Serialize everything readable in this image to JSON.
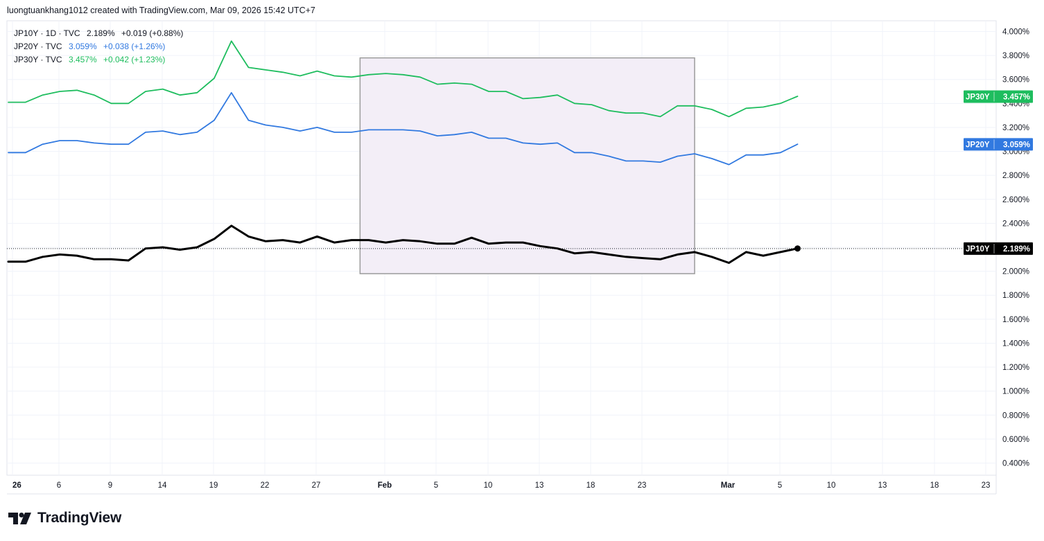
{
  "header": {
    "text": "luongtuankhang1012 created with TradingView.com, Mar 09, 2026 15:42 UTC+7"
  },
  "legend": [
    {
      "symbol": "JP10Y · 1D · TVC",
      "value": "2.189%",
      "change": "+0.019 (+0.88%)",
      "color": "#131722"
    },
    {
      "symbol": "JP20Y · TVC",
      "value": "3.059%",
      "change": "+0.038 (+1.26%)",
      "color": "#3179e0"
    },
    {
      "symbol": "JP30Y · TVC",
      "value": "3.457%",
      "change": "+0.042 (+1.23%)",
      "color": "#1ebd5e"
    }
  ],
  "brand": {
    "name": "TradingView"
  },
  "chart_data": {
    "type": "line",
    "y_ticks": [
      "4.000%",
      "3.800%",
      "3.600%",
      "3.400%",
      "3.200%",
      "3.000%",
      "2.800%",
      "2.600%",
      "2.400%",
      "2.200%",
      "2.000%",
      "1.800%",
      "1.600%",
      "1.400%",
      "1.200%",
      "1.000%",
      "0.800%",
      "0.600%",
      "0.400%"
    ],
    "x_ticks": [
      "26",
      "6",
      "9",
      "14",
      "19",
      "22",
      "27",
      "Feb",
      "5",
      "10",
      "13",
      "18",
      "23",
      "Mar",
      "5",
      "10",
      "13",
      "18",
      "23"
    ],
    "ylim": [
      0.4,
      4.0
    ],
    "grid": true,
    "x_index_range": [
      0,
      57
    ],
    "series": [
      {
        "name": "JP30Y",
        "color": "#1ebd5e",
        "last_label": "3.457%",
        "x": [
          0,
          1,
          2,
          3,
          4,
          5,
          6,
          7,
          8,
          9,
          10,
          11,
          12,
          13,
          14,
          15,
          16,
          17,
          18,
          19,
          20,
          21,
          22,
          23,
          24,
          25,
          26,
          27,
          28,
          29,
          30,
          31,
          32,
          33,
          34,
          35,
          36,
          37,
          38,
          39,
          40,
          41,
          42,
          43,
          44,
          45,
          46
        ],
        "values": [
          3.41,
          3.41,
          3.47,
          3.5,
          3.51,
          3.47,
          3.4,
          3.4,
          3.5,
          3.52,
          3.47,
          3.49,
          3.61,
          3.92,
          3.7,
          3.68,
          3.66,
          3.63,
          3.67,
          3.63,
          3.62,
          3.64,
          3.65,
          3.64,
          3.62,
          3.56,
          3.57,
          3.56,
          3.5,
          3.5,
          3.44,
          3.45,
          3.47,
          3.4,
          3.39,
          3.34,
          3.32,
          3.32,
          3.29,
          3.38,
          3.38,
          3.35,
          3.29,
          3.36,
          3.37,
          3.4,
          3.46
        ]
      },
      {
        "name": "JP20Y",
        "color": "#3179e0",
        "last_label": "3.059%",
        "x": [
          0,
          1,
          2,
          3,
          4,
          5,
          6,
          7,
          8,
          9,
          10,
          11,
          12,
          13,
          14,
          15,
          16,
          17,
          18,
          19,
          20,
          21,
          22,
          23,
          24,
          25,
          26,
          27,
          28,
          29,
          30,
          31,
          32,
          33,
          34,
          35,
          36,
          37,
          38,
          39,
          40,
          41,
          42,
          43,
          44,
          45,
          46
        ],
        "values": [
          2.99,
          2.99,
          3.06,
          3.09,
          3.09,
          3.07,
          3.06,
          3.06,
          3.16,
          3.17,
          3.14,
          3.16,
          3.26,
          3.49,
          3.26,
          3.22,
          3.2,
          3.17,
          3.2,
          3.16,
          3.16,
          3.18,
          3.18,
          3.18,
          3.17,
          3.13,
          3.14,
          3.16,
          3.11,
          3.11,
          3.07,
          3.06,
          3.07,
          2.99,
          2.99,
          2.96,
          2.92,
          2.92,
          2.91,
          2.96,
          2.98,
          2.94,
          2.89,
          2.97,
          2.97,
          2.99,
          3.06
        ]
      },
      {
        "name": "JP10Y",
        "color": "#000000",
        "last_label": "2.189%",
        "x": [
          0,
          1,
          2,
          3,
          4,
          5,
          6,
          7,
          8,
          9,
          10,
          11,
          12,
          13,
          14,
          15,
          16,
          17,
          18,
          19,
          20,
          21,
          22,
          23,
          24,
          25,
          26,
          27,
          28,
          29,
          30,
          31,
          32,
          33,
          34,
          35,
          36,
          37,
          38,
          39,
          40,
          41,
          42,
          43,
          44,
          45,
          46
        ],
        "values": [
          2.08,
          2.08,
          2.12,
          2.14,
          2.13,
          2.1,
          2.1,
          2.09,
          2.19,
          2.2,
          2.18,
          2.2,
          2.27,
          2.38,
          2.29,
          2.25,
          2.26,
          2.24,
          2.29,
          2.24,
          2.26,
          2.26,
          2.24,
          2.26,
          2.25,
          2.23,
          2.23,
          2.28,
          2.23,
          2.24,
          2.24,
          2.21,
          2.19,
          2.15,
          2.16,
          2.14,
          2.12,
          2.11,
          2.1,
          2.14,
          2.16,
          2.12,
          2.07,
          2.16,
          2.13,
          2.16,
          2.19
        ]
      }
    ],
    "annotations": [
      {
        "type": "rectangle",
        "x_range": [
          20.5,
          40
        ],
        "y_range": [
          1.98,
          3.78
        ],
        "fill": "#f3eef7",
        "stroke": "#9a9a9a"
      },
      {
        "type": "horizontal_dotted_line",
        "y": 2.189
      }
    ]
  },
  "colors": {
    "grid": "#f0f3fa",
    "axis_line": "#e0e3eb",
    "jp10y": "#131722",
    "jp20y": "#3179e0",
    "jp30y": "#1ebd5e"
  }
}
